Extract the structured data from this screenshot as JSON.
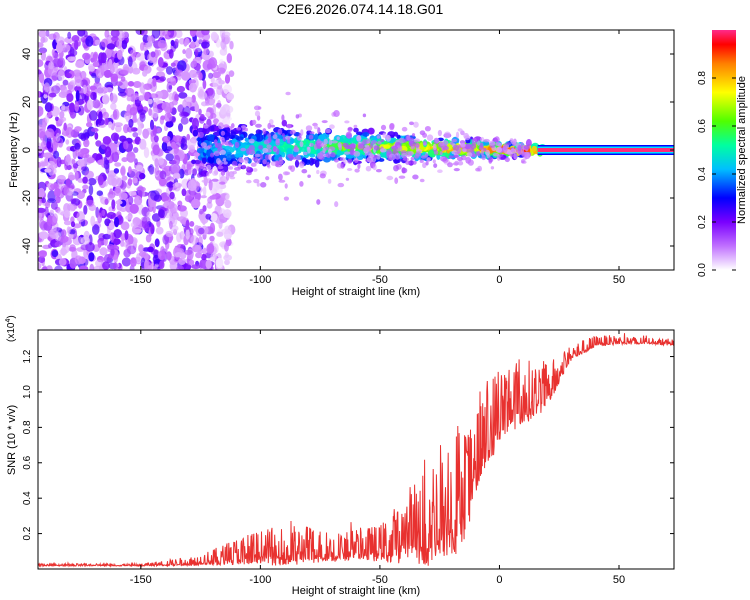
{
  "title": "C2E6.2026.074.14.18.G01",
  "chart_data": [
    {
      "type": "heatmap",
      "name": "spectrogram",
      "xlabel": "Height of straight line (km)",
      "ylabel": "Frequency (Hz)",
      "xlim": [
        -193,
        73
      ],
      "ylim": [
        -50,
        50
      ],
      "xticks": [
        -150,
        -100,
        -50,
        0,
        50
      ],
      "yticks": [
        -40,
        -20,
        0,
        20,
        40
      ],
      "xtick_labels": [
        "-150",
        "-100",
        "-50",
        "0",
        "50"
      ],
      "ytick_labels": [
        "-40",
        "-20",
        "0",
        "20",
        "40"
      ],
      "signal_center_hz": 0,
      "scatter_region_km": [
        -193,
        -120
      ],
      "track_start_km": -125,
      "clean_line_start_km": 18
    },
    {
      "type": "colorbar",
      "name": "amplitude-scale",
      "label": "Normalized spectral amplitude",
      "range": [
        0.0,
        1.0
      ],
      "ticks": [
        0.0,
        0.2,
        0.4,
        0.6,
        0.8
      ],
      "tick_labels": [
        "0.0",
        "0.2",
        "0.4",
        "0.6",
        "0.8"
      ],
      "colors": [
        "#ffffff",
        "#c060ff",
        "#7000ff",
        "#0000ff",
        "#00c0ff",
        "#00ffa0",
        "#60ff00",
        "#ffff00",
        "#ff8000",
        "#ff0000",
        "#ff2080"
      ]
    },
    {
      "type": "line",
      "name": "snr",
      "xlabel": "Height of straight line (km)",
      "ylabel": "SNR (10 * v/v)",
      "multiplier": "(x10",
      "multiplier_exp": "4",
      "multiplier_close": ")",
      "xlim": [
        -193,
        73
      ],
      "ylim": [
        0,
        1.35
      ],
      "xticks": [
        -150,
        -100,
        -50,
        0,
        50
      ],
      "yticks": [
        0.2,
        0.4,
        0.6,
        0.8,
        1.0,
        1.2
      ],
      "xtick_labels": [
        "-150",
        "-100",
        "-50",
        "0",
        "50"
      ],
      "ytick_labels": [
        "0.2",
        "0.4",
        "0.6",
        "0.8",
        "1.0",
        "1.2"
      ],
      "color": "#e8312f",
      "envelope": {
        "x": [
          -193,
          -150,
          -130,
          -120,
          -110,
          -100,
          -90,
          -80,
          -70,
          -60,
          -50,
          -40,
          -35,
          -30,
          -25,
          -20,
          -15,
          -10,
          -5,
          0,
          5,
          10,
          15,
          20,
          25,
          30,
          40,
          50,
          60,
          73
        ],
        "base": [
          0.02,
          0.02,
          0.03,
          0.04,
          0.06,
          0.07,
          0.07,
          0.08,
          0.08,
          0.09,
          0.09,
          0.12,
          0.14,
          0.16,
          0.2,
          0.24,
          0.28,
          0.55,
          0.7,
          0.8,
          0.88,
          0.9,
          0.92,
          0.98,
          1.08,
          1.2,
          1.27,
          1.28,
          1.28,
          1.27
        ],
        "amp": [
          0.01,
          0.01,
          0.04,
          0.07,
          0.12,
          0.15,
          0.18,
          0.17,
          0.13,
          0.14,
          0.16,
          0.3,
          0.4,
          0.5,
          0.55,
          0.6,
          0.62,
          0.4,
          0.4,
          0.35,
          0.35,
          0.3,
          0.25,
          0.2,
          0.12,
          0.07,
          0.05,
          0.04,
          0.03,
          0.03
        ]
      }
    }
  ]
}
